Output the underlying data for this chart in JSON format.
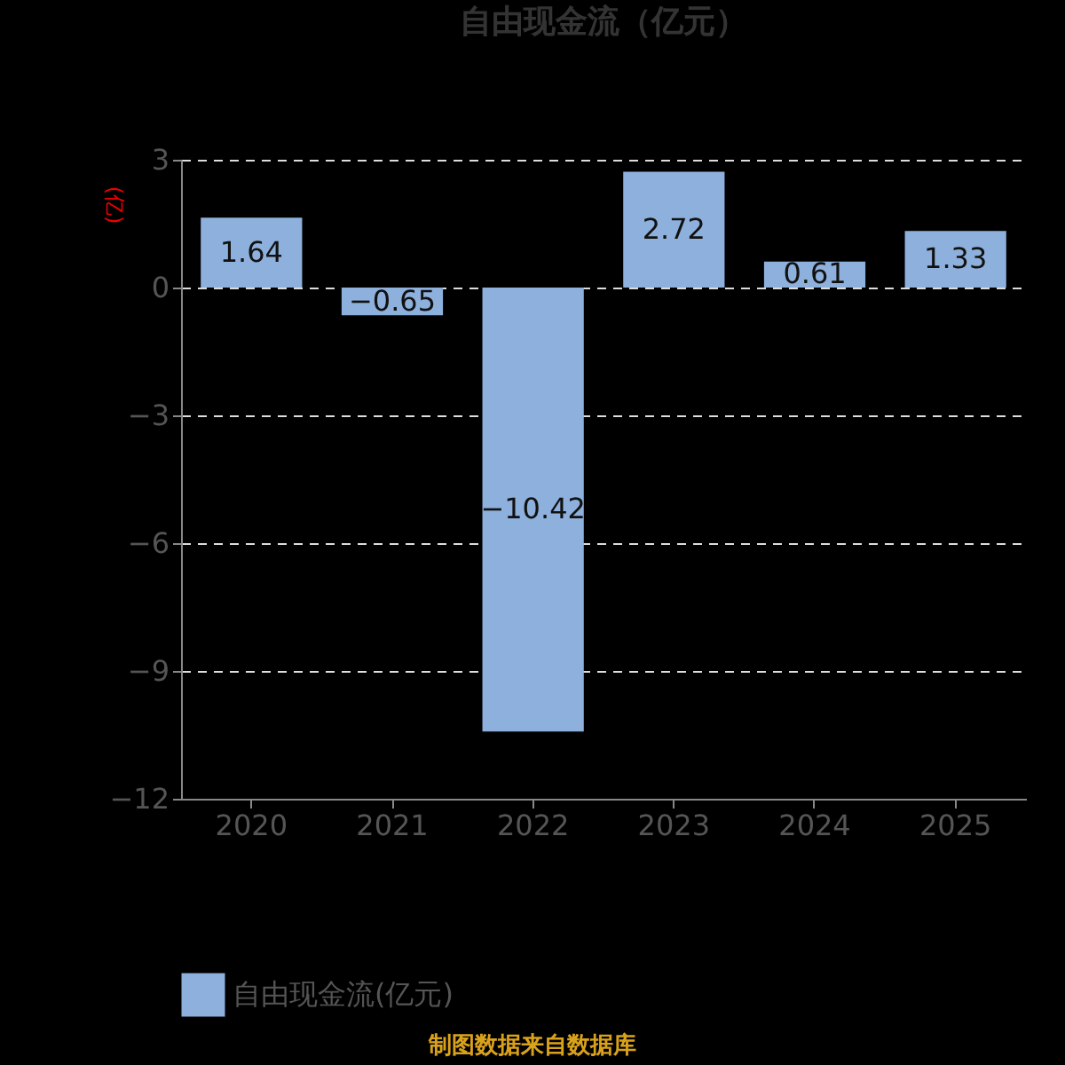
{
  "chart_data": {
    "type": "bar",
    "title": "自由现金流（亿元）",
    "ylabel": "(亿)",
    "categories": [
      "2020",
      "2021",
      "2022",
      "2023",
      "2024",
      "2025"
    ],
    "series": [
      {
        "name": "自由现金流(亿元)",
        "color": "#8eb0dc",
        "values": [
          1.64,
          -0.65,
          -10.42,
          2.72,
          0.61,
          1.33
        ]
      }
    ],
    "ylim": [
      -12,
      3
    ],
    "yticks": [
      -12,
      -9,
      -6,
      -3,
      0,
      3
    ],
    "grid": "y",
    "legend": "bottom",
    "data_labels": true,
    "annotations": [
      "制图数据来自数据库"
    ]
  }
}
